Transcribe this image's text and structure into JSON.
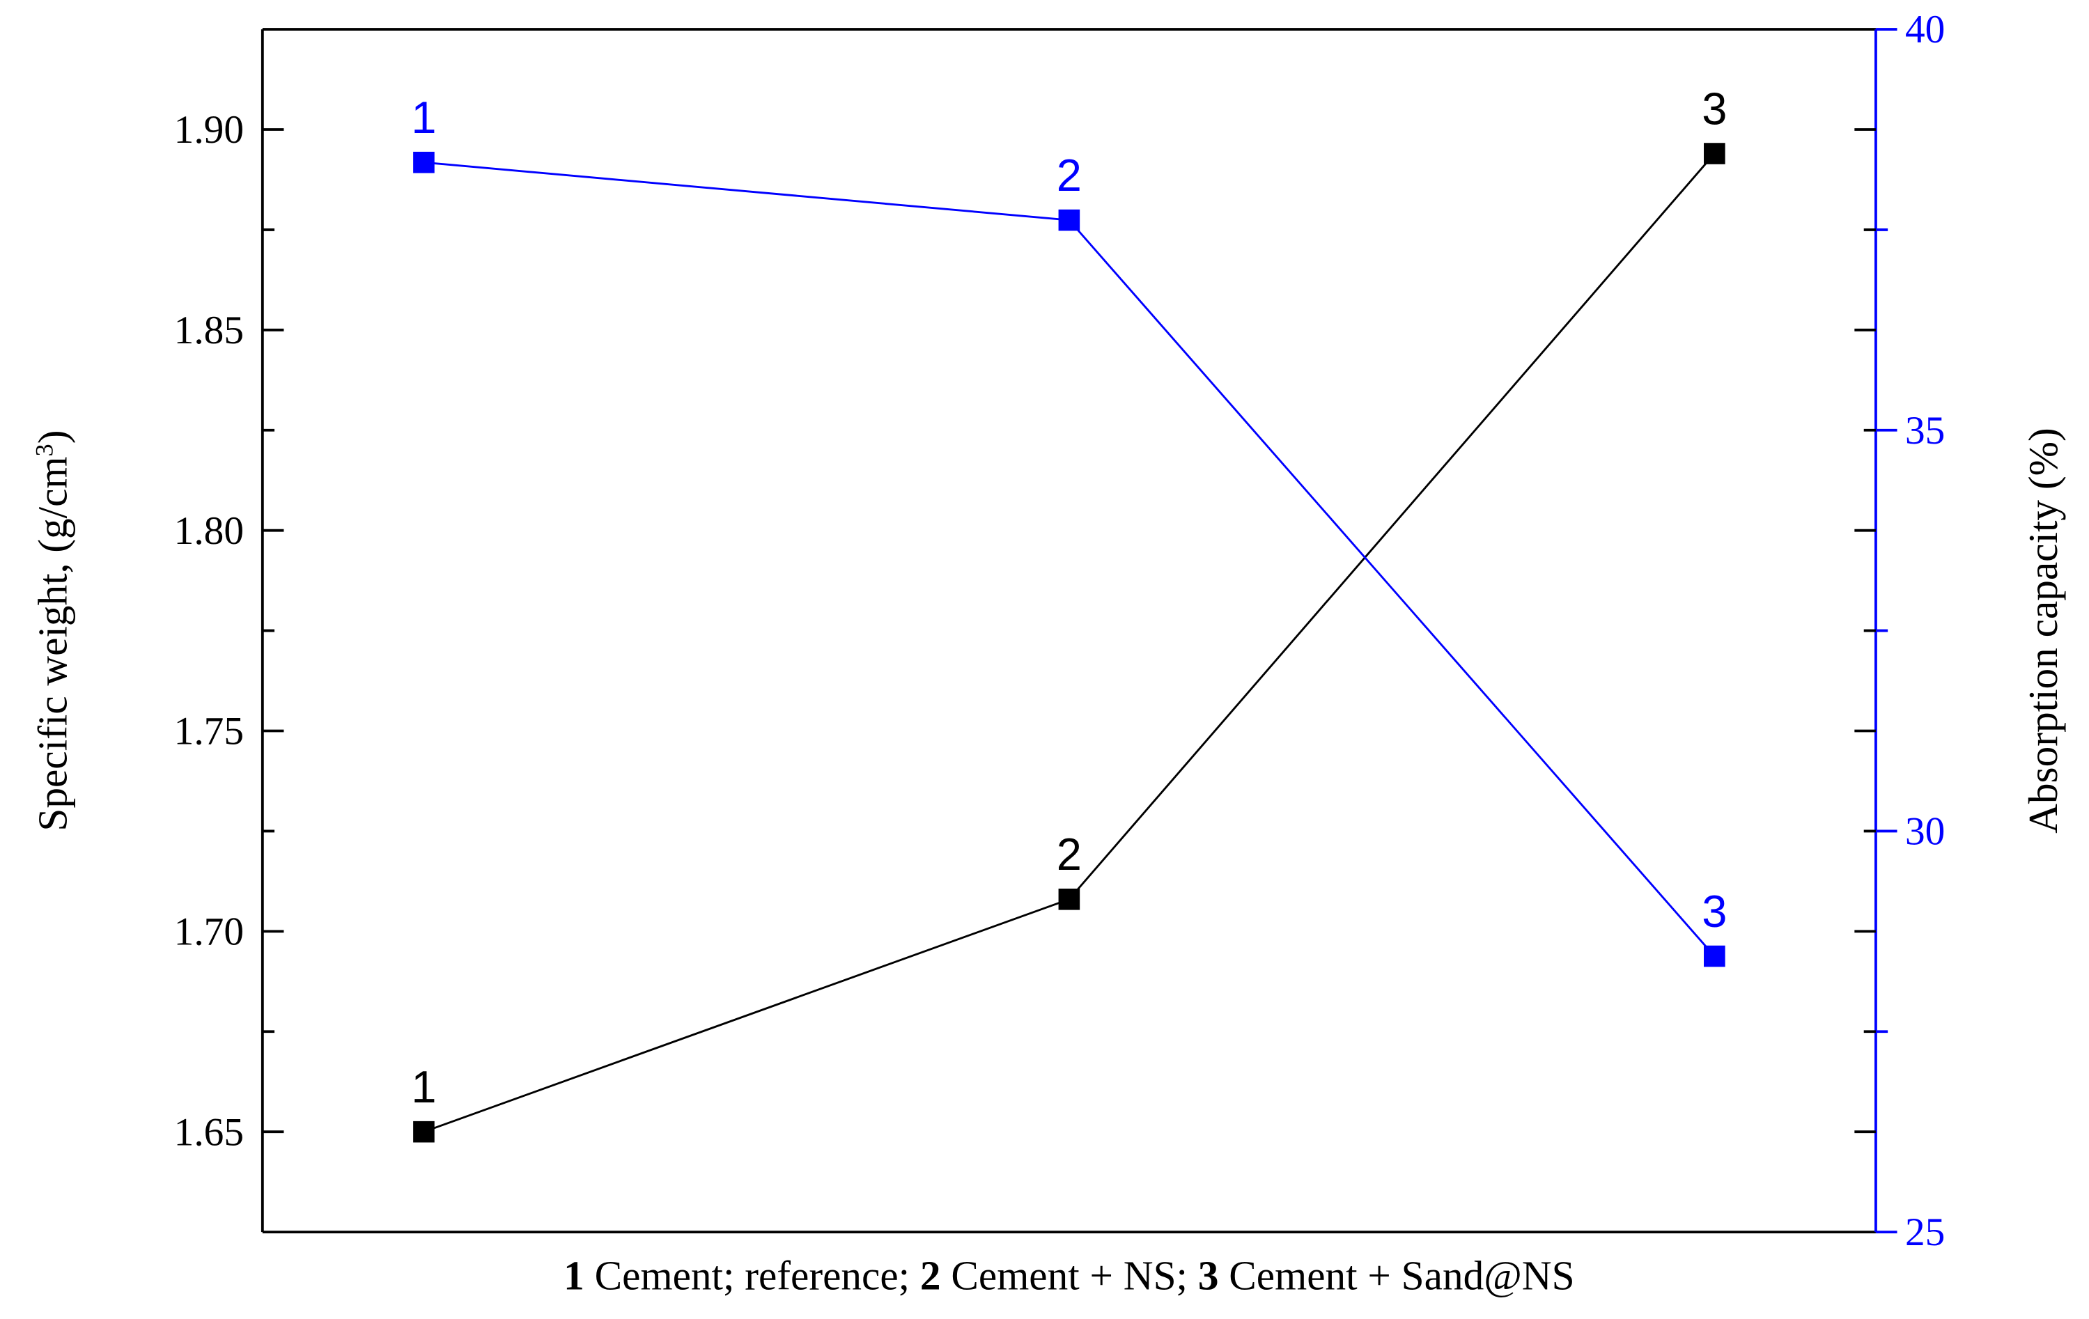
{
  "chart_data": {
    "type": "line",
    "categories": [
      "1",
      "2",
      "3"
    ],
    "y_label": [
      "Specific weight, (g/cm",
      "3",
      ")"
    ],
    "y2_label": "Absorption capacity (%)",
    "x_label": [
      {
        "text": "1",
        "bold": true
      },
      {
        "text": " Cement; reference; ",
        "bold": false
      },
      {
        "text": "2",
        "bold": true
      },
      {
        "text": " Cement +  NS; ",
        "bold": false
      },
      {
        "text": "3",
        "bold": true
      },
      {
        "text": " Cement +  Sand@NS",
        "bold": false
      }
    ],
    "ylim": [
      1.625,
      1.925
    ],
    "yticks": [
      {
        "value": 1.65,
        "label": "1.65"
      },
      {
        "value": 1.7,
        "label": "1.70"
      },
      {
        "value": 1.75,
        "label": "1.75"
      },
      {
        "value": 1.8,
        "label": "1.80"
      },
      {
        "value": 1.85,
        "label": "1.85"
      },
      {
        "value": 1.9,
        "label": "1.90"
      }
    ],
    "yminorticks": [
      1.675,
      1.725,
      1.775,
      1.825,
      1.875
    ],
    "y2lim": [
      25,
      40
    ],
    "y2ticks": [
      25,
      30,
      35,
      40
    ],
    "y2minorticks": [
      27.5,
      32.5,
      37.5
    ],
    "y2_color": "#0000ff",
    "series": [
      {
        "name": "Specific weight",
        "color": "#000000",
        "values": [
          1.65,
          1.708,
          1.894
        ]
      },
      {
        "name": "Absorption capacity",
        "color": "#0000ff",
        "axis": "y2",
        "values": [
          38.34,
          37.62,
          28.44
        ]
      }
    ]
  }
}
